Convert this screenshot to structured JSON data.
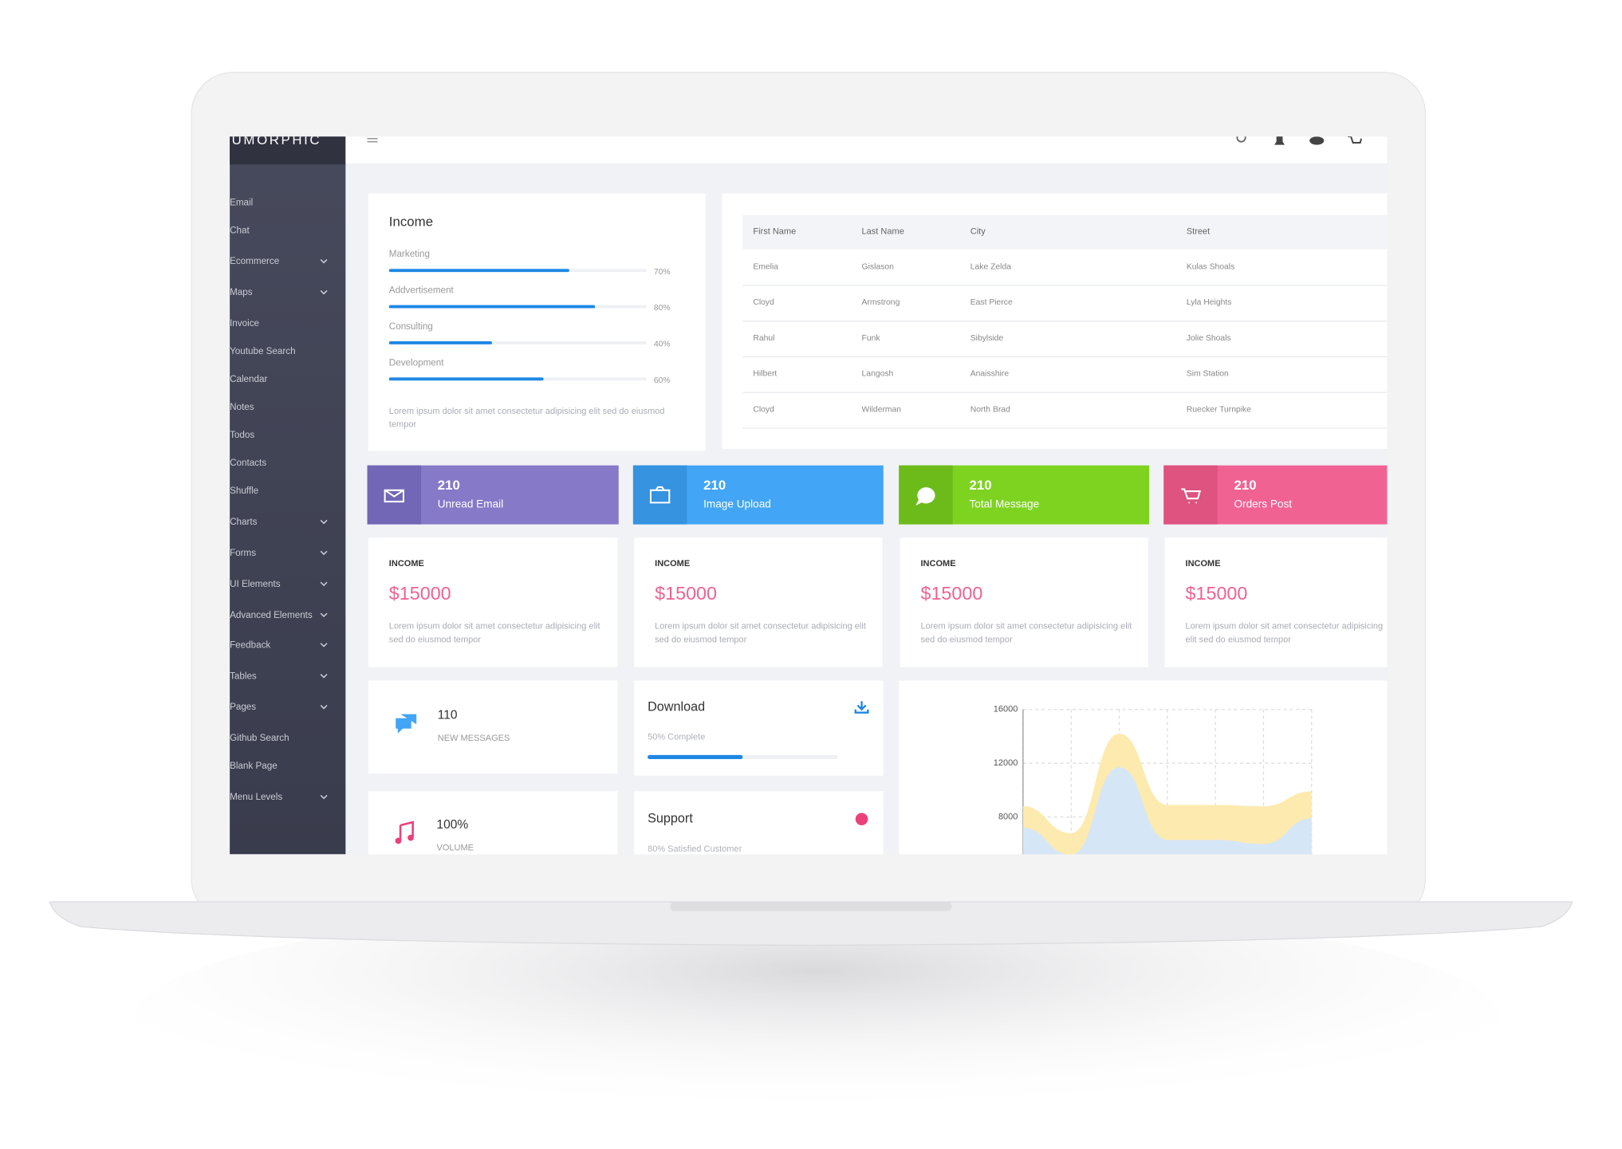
{
  "sidebar": {
    "brand": "UMORPHIC",
    "menu": [
      {
        "label": "Email",
        "submenu": false
      },
      {
        "label": "Chat",
        "submenu": false
      },
      {
        "label": "Ecommerce",
        "submenu": true
      },
      {
        "label": "Maps",
        "submenu": true
      },
      {
        "label": "Invoice",
        "submenu": false
      },
      {
        "label": "Youtube Search",
        "submenu": false
      },
      {
        "label": "Calendar",
        "submenu": false
      },
      {
        "label": "Notes",
        "submenu": false
      },
      {
        "label": "Todos",
        "submenu": false
      },
      {
        "label": "Contacts",
        "submenu": false
      },
      {
        "label": "Shuffle",
        "submenu": false
      },
      {
        "label": "Charts",
        "submenu": true
      },
      {
        "label": "Forms",
        "submenu": true
      },
      {
        "label": "UI Elements",
        "submenu": true
      },
      {
        "label": "Advanced Elements",
        "submenu": true
      },
      {
        "label": "Feedback",
        "submenu": true
      },
      {
        "label": "Tables",
        "submenu": true
      },
      {
        "label": "Pages",
        "submenu": true
      },
      {
        "label": "Github Search",
        "submenu": false
      },
      {
        "label": "Blank Page",
        "submenu": false
      },
      {
        "label": "Menu Levels",
        "submenu": true
      }
    ]
  },
  "income": {
    "title": "Income",
    "items": [
      {
        "label": "Marketing",
        "value": 70,
        "value_label": "70%"
      },
      {
        "label": "Addvertisement",
        "value": 80,
        "value_label": "80%"
      },
      {
        "label": "Consulting",
        "value": 40,
        "value_label": "40%"
      },
      {
        "label": "Development",
        "value": 60,
        "value_label": "60%"
      }
    ],
    "note": "Lorem ipsum dolor sit amet consectetur adipisicing elit sed do eiusmod tempor"
  },
  "table": {
    "headers": [
      "First Name",
      "Last Name",
      "City",
      "Street"
    ],
    "rows": [
      [
        "Emelia",
        "Gislason",
        "Lake Zelda",
        "Kulas Shoals"
      ],
      [
        "Cloyd",
        "Armstrong",
        "East Pierce",
        "Lyla Heights"
      ],
      [
        "Rahul",
        "Funk",
        "Sibylside",
        "Jolie Shoals"
      ],
      [
        "Hilbert",
        "Langosh",
        "Anaisshire",
        "Sim Station"
      ],
      [
        "Cloyd",
        "Wilderman",
        "North Brad",
        "Ruecker Turnpike"
      ]
    ]
  },
  "stats": [
    {
      "value": 210,
      "label": "Unread Email"
    },
    {
      "value": 210,
      "label": "Image Upload"
    },
    {
      "value": 210,
      "label": "Total Message"
    },
    {
      "value": 210,
      "label": "Orders Post"
    }
  ],
  "income_cards": [
    {
      "title": "INCOME",
      "amount": "$15000",
      "text": "Lorem ipsum dolor sit amet consectetur adipisicing elit sed do eiusmod tempor"
    },
    {
      "title": "INCOME",
      "amount": "$15000",
      "text": "Lorem ipsum dolor sit amet consectetur adipisicing elit sed do eiusmod tempor"
    },
    {
      "title": "INCOME",
      "amount": "$15000",
      "text": "Lorem ipsum dolor sit amet consectetur adipisicing elit sed do eiusmod tempor"
    },
    {
      "title": "INCOME",
      "amount": "$15000",
      "text": "Lorem ipsum dolor sit amet consectetur adipisicing elit sed do eiusmod tempor"
    }
  ],
  "messages": {
    "value": 110,
    "label": "NEW MESSAGES"
  },
  "volume": {
    "value": "100%",
    "label": "VOLUME"
  },
  "download": {
    "title": "Download",
    "status": "50% Complete",
    "progress": 50
  },
  "support": {
    "title": "Support",
    "status": "80% Satisfied Customer"
  },
  "chart_data": {
    "type": "area",
    "ylim": [
      0,
      16000
    ],
    "yticks": [
      8000,
      12000,
      16000
    ],
    "grid": true,
    "series": [
      {
        "color": "#fde9aa",
        "values": [
          8800,
          6800,
          14200,
          8900,
          8900,
          8800,
          9900
        ]
      },
      {
        "color": "#d3e6fb",
        "values": [
          7200,
          5200,
          11700,
          6300,
          6300,
          6000,
          7900
        ]
      }
    ]
  }
}
